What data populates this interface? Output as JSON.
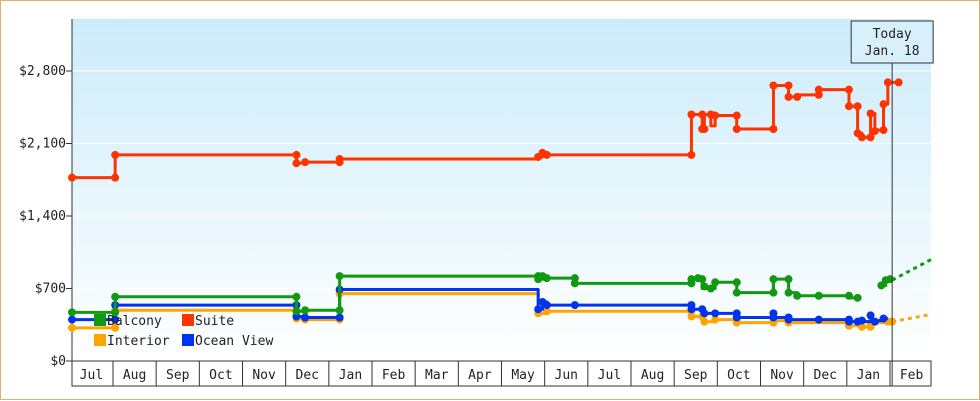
{
  "chart_data": {
    "type": "line",
    "title": "",
    "xlabel": "",
    "ylabel": "",
    "ylim": [
      0,
      2800
    ],
    "ytick_values": [
      0,
      700,
      1400,
      2100,
      2800
    ],
    "ytick_labels": [
      "$0",
      "$700",
      "$1,400",
      "$2,100",
      "$2,800"
    ],
    "x_range_months": [
      -0.45,
      19.45
    ],
    "month_labels": [
      "Jul",
      "Aug",
      "Sep",
      "Oct",
      "Nov",
      "Dec",
      "Jan",
      "Feb",
      "Mar",
      "Apr",
      "May",
      "Jun",
      "Jul",
      "Aug",
      "Sep",
      "Oct",
      "Nov",
      "Dec",
      "Jan",
      "Feb"
    ],
    "today": {
      "line1": "Today",
      "line2": "Jan. 18",
      "x": 18.55
    },
    "grid": "horizontal",
    "legend_placement": "bottom-left",
    "series": [
      {
        "name": "Suite",
        "color": "#ff3300",
        "points": [
          [
            -0.45,
            1770
          ],
          [
            0.55,
            1770
          ],
          [
            0.55,
            1990
          ],
          [
            4.75,
            1990
          ],
          [
            4.75,
            1910
          ],
          [
            4.95,
            1910
          ],
          [
            4.95,
            1920
          ],
          [
            5.75,
            1920
          ],
          [
            5.75,
            1950
          ],
          [
            10.35,
            1950
          ],
          [
            10.35,
            1970
          ],
          [
            10.45,
            1970
          ],
          [
            10.45,
            2010
          ],
          [
            10.55,
            2010
          ],
          [
            10.55,
            1990
          ],
          [
            13.9,
            1990
          ],
          [
            13.9,
            2380
          ],
          [
            14.15,
            2380
          ],
          [
            14.15,
            2240
          ],
          [
            14.2,
            2240
          ],
          [
            14.2,
            2380
          ],
          [
            14.35,
            2380
          ],
          [
            14.35,
            2270
          ],
          [
            14.45,
            2270
          ],
          [
            14.45,
            2370
          ],
          [
            14.95,
            2370
          ],
          [
            14.95,
            2240
          ],
          [
            15.8,
            2240
          ],
          [
            15.8,
            2660
          ],
          [
            16.15,
            2660
          ],
          [
            16.15,
            2550
          ],
          [
            16.35,
            2550
          ],
          [
            16.35,
            2570
          ],
          [
            16.85,
            2570
          ],
          [
            16.85,
            2620
          ],
          [
            17.55,
            2620
          ],
          [
            17.55,
            2460
          ],
          [
            17.75,
            2460
          ],
          [
            17.75,
            2200
          ],
          [
            17.85,
            2200
          ],
          [
            17.85,
            2160
          ],
          [
            18.05,
            2160
          ],
          [
            18.05,
            2390
          ],
          [
            18.15,
            2390
          ],
          [
            18.15,
            2220
          ],
          [
            18.2,
            2220
          ],
          [
            18.2,
            2230
          ],
          [
            18.35,
            2230
          ],
          [
            18.35,
            2480
          ],
          [
            18.45,
            2480
          ],
          [
            18.45,
            2690
          ],
          [
            18.7,
            2690
          ]
        ],
        "markers": [
          [
            -0.45,
            1770
          ],
          [
            0.55,
            1770
          ],
          [
            0.55,
            1990
          ],
          [
            4.75,
            1990
          ],
          [
            4.75,
            1910
          ],
          [
            4.95,
            1920
          ],
          [
            5.75,
            1920
          ],
          [
            5.75,
            1950
          ],
          [
            10.35,
            1970
          ],
          [
            10.45,
            2010
          ],
          [
            10.55,
            1990
          ],
          [
            13.9,
            1990
          ],
          [
            13.9,
            2380
          ],
          [
            14.15,
            2380
          ],
          [
            14.15,
            2240
          ],
          [
            14.2,
            2240
          ],
          [
            14.35,
            2380
          ],
          [
            14.45,
            2370
          ],
          [
            14.95,
            2370
          ],
          [
            14.95,
            2240
          ],
          [
            15.8,
            2240
          ],
          [
            15.8,
            2660
          ],
          [
            16.15,
            2660
          ],
          [
            16.15,
            2550
          ],
          [
            16.35,
            2550
          ],
          [
            16.85,
            2570
          ],
          [
            16.85,
            2620
          ],
          [
            17.55,
            2620
          ],
          [
            17.55,
            2460
          ],
          [
            17.75,
            2460
          ],
          [
            17.75,
            2200
          ],
          [
            17.85,
            2160
          ],
          [
            18.05,
            2160
          ],
          [
            18.05,
            2390
          ],
          [
            18.15,
            2220
          ],
          [
            18.35,
            2230
          ],
          [
            18.35,
            2480
          ],
          [
            18.45,
            2690
          ],
          [
            18.7,
            2690
          ]
        ]
      },
      {
        "name": "Balcony",
        "color": "#119911",
        "points": [
          [
            -0.45,
            470
          ],
          [
            0.55,
            470
          ],
          [
            0.55,
            620
          ],
          [
            4.75,
            620
          ],
          [
            4.75,
            480
          ],
          [
            4.95,
            480
          ],
          [
            4.95,
            490
          ],
          [
            5.75,
            490
          ],
          [
            5.75,
            820
          ],
          [
            10.35,
            820
          ],
          [
            10.35,
            790
          ],
          [
            10.55,
            790
          ],
          [
            10.55,
            800
          ],
          [
            11.2,
            800
          ],
          [
            11.2,
            750
          ],
          [
            13.9,
            750
          ],
          [
            13.9,
            790
          ],
          [
            14.15,
            790
          ],
          [
            14.15,
            700
          ],
          [
            14.45,
            700
          ],
          [
            14.45,
            760
          ],
          [
            14.95,
            760
          ],
          [
            14.95,
            660
          ],
          [
            15.8,
            660
          ],
          [
            15.8,
            790
          ],
          [
            16.15,
            790
          ],
          [
            16.15,
            660
          ],
          [
            16.35,
            660
          ],
          [
            16.35,
            630
          ],
          [
            17.55,
            630
          ],
          [
            17.55,
            610
          ],
          [
            17.75,
            610
          ]
        ],
        "markers": [
          [
            -0.45,
            470
          ],
          [
            0.55,
            470
          ],
          [
            0.55,
            620
          ],
          [
            4.75,
            620
          ],
          [
            4.75,
            480
          ],
          [
            4.95,
            490
          ],
          [
            5.75,
            490
          ],
          [
            5.75,
            820
          ],
          [
            10.35,
            820
          ],
          [
            10.35,
            790
          ],
          [
            10.45,
            820
          ],
          [
            10.55,
            800
          ],
          [
            11.2,
            800
          ],
          [
            11.2,
            750
          ],
          [
            13.9,
            750
          ],
          [
            13.9,
            790
          ],
          [
            14.05,
            800
          ],
          [
            14.15,
            790
          ],
          [
            14.2,
            720
          ],
          [
            14.35,
            700
          ],
          [
            14.45,
            760
          ],
          [
            14.95,
            760
          ],
          [
            14.95,
            660
          ],
          [
            15.8,
            660
          ],
          [
            15.8,
            790
          ],
          [
            16.15,
            790
          ],
          [
            16.15,
            660
          ],
          [
            16.35,
            630
          ],
          [
            16.85,
            630
          ],
          [
            17.55,
            630
          ],
          [
            17.75,
            610
          ]
        ],
        "segment2": [
          [
            18.3,
            730
          ],
          [
            18.4,
            730
          ],
          [
            18.4,
            780
          ],
          [
            18.55,
            780
          ]
        ],
        "segment2_markers": [
          [
            18.3,
            730
          ],
          [
            18.4,
            780
          ],
          [
            18.5,
            790
          ]
        ],
        "projection": [
          [
            18.55,
            780
          ],
          [
            19.45,
            980
          ]
        ]
      },
      {
        "name": "Ocean View",
        "color": "#0033ee",
        "points": [
          [
            -0.45,
            400
          ],
          [
            0.55,
            400
          ],
          [
            0.55,
            540
          ],
          [
            4.75,
            540
          ],
          [
            4.75,
            430
          ],
          [
            4.95,
            430
          ],
          [
            4.95,
            420
          ],
          [
            5.75,
            420
          ],
          [
            5.75,
            690
          ],
          [
            10.35,
            690
          ],
          [
            10.35,
            500
          ],
          [
            10.45,
            500
          ],
          [
            10.45,
            570
          ],
          [
            10.55,
            570
          ],
          [
            10.55,
            540
          ],
          [
            13.9,
            540
          ],
          [
            13.9,
            500
          ],
          [
            14.15,
            500
          ],
          [
            14.15,
            460
          ],
          [
            14.45,
            460
          ],
          [
            14.45,
            460
          ],
          [
            14.95,
            460
          ],
          [
            14.95,
            420
          ],
          [
            15.8,
            420
          ],
          [
            15.8,
            420
          ],
          [
            16.15,
            420
          ],
          [
            16.15,
            400
          ],
          [
            17.55,
            400
          ],
          [
            17.55,
            380
          ],
          [
            18.05,
            380
          ],
          [
            18.05,
            390
          ],
          [
            18.35,
            390
          ],
          [
            18.35,
            410
          ],
          [
            18.45,
            410
          ]
        ],
        "markers": [
          [
            -0.45,
            400
          ],
          [
            0.55,
            400
          ],
          [
            0.55,
            540
          ],
          [
            4.75,
            540
          ],
          [
            4.75,
            430
          ],
          [
            4.95,
            420
          ],
          [
            5.75,
            420
          ],
          [
            5.75,
            690
          ],
          [
            10.35,
            500
          ],
          [
            10.45,
            570
          ],
          [
            10.55,
            540
          ],
          [
            11.2,
            540
          ],
          [
            13.9,
            540
          ],
          [
            13.9,
            500
          ],
          [
            14.15,
            500
          ],
          [
            14.2,
            460
          ],
          [
            14.45,
            460
          ],
          [
            14.95,
            460
          ],
          [
            14.95,
            420
          ],
          [
            15.8,
            420
          ],
          [
            15.8,
            460
          ],
          [
            16.15,
            420
          ],
          [
            16.15,
            400
          ],
          [
            16.85,
            400
          ],
          [
            17.55,
            400
          ],
          [
            17.55,
            380
          ],
          [
            17.75,
            380
          ],
          [
            17.85,
            390
          ],
          [
            18.05,
            440
          ],
          [
            18.15,
            380
          ],
          [
            18.35,
            410
          ]
        ]
      },
      {
        "name": "Interior",
        "color": "#ffa500",
        "points": [
          [
            -0.45,
            320
          ],
          [
            0.55,
            320
          ],
          [
            0.55,
            490
          ],
          [
            4.75,
            490
          ],
          [
            4.75,
            410
          ],
          [
            4.95,
            410
          ],
          [
            4.95,
            400
          ],
          [
            5.75,
            400
          ],
          [
            5.75,
            650
          ],
          [
            10.35,
            650
          ],
          [
            10.35,
            460
          ],
          [
            10.55,
            460
          ],
          [
            10.55,
            480
          ],
          [
            13.9,
            480
          ],
          [
            13.9,
            430
          ],
          [
            14.15,
            430
          ],
          [
            14.15,
            380
          ],
          [
            14.45,
            380
          ],
          [
            14.45,
            400
          ],
          [
            14.95,
            400
          ],
          [
            14.95,
            370
          ],
          [
            15.8,
            370
          ],
          [
            15.8,
            390
          ],
          [
            16.15,
            390
          ],
          [
            16.15,
            370
          ],
          [
            17.55,
            370
          ],
          [
            17.55,
            340
          ],
          [
            17.85,
            340
          ],
          [
            17.85,
            330
          ],
          [
            18.05,
            330
          ],
          [
            18.05,
            370
          ],
          [
            18.45,
            370
          ],
          [
            18.45,
            380
          ],
          [
            18.55,
            380
          ]
        ],
        "markers": [
          [
            -0.45,
            320
          ],
          [
            0.55,
            320
          ],
          [
            0.55,
            490
          ],
          [
            4.75,
            490
          ],
          [
            4.75,
            410
          ],
          [
            4.95,
            400
          ],
          [
            5.75,
            400
          ],
          [
            5.75,
            650
          ],
          [
            10.35,
            460
          ],
          [
            10.55,
            480
          ],
          [
            13.9,
            480
          ],
          [
            13.9,
            430
          ],
          [
            14.15,
            430
          ],
          [
            14.2,
            380
          ],
          [
            14.45,
            400
          ],
          [
            14.95,
            400
          ],
          [
            14.95,
            370
          ],
          [
            15.8,
            370
          ],
          [
            15.8,
            390
          ],
          [
            16.15,
            390
          ],
          [
            16.15,
            370
          ],
          [
            17.55,
            370
          ],
          [
            17.55,
            340
          ],
          [
            17.85,
            330
          ],
          [
            18.05,
            330
          ],
          [
            18.05,
            370
          ],
          [
            18.45,
            380
          ],
          [
            18.55,
            380
          ]
        ],
        "projection": [
          [
            18.55,
            380
          ],
          [
            19.45,
            450
          ]
        ]
      }
    ],
    "legend": [
      {
        "name": "Balcony",
        "color": "#119911"
      },
      {
        "name": "Suite",
        "color": "#ff3300"
      },
      {
        "name": "Interior",
        "color": "#ffa500"
      },
      {
        "name": "Ocean View",
        "color": "#0033ee"
      }
    ]
  }
}
